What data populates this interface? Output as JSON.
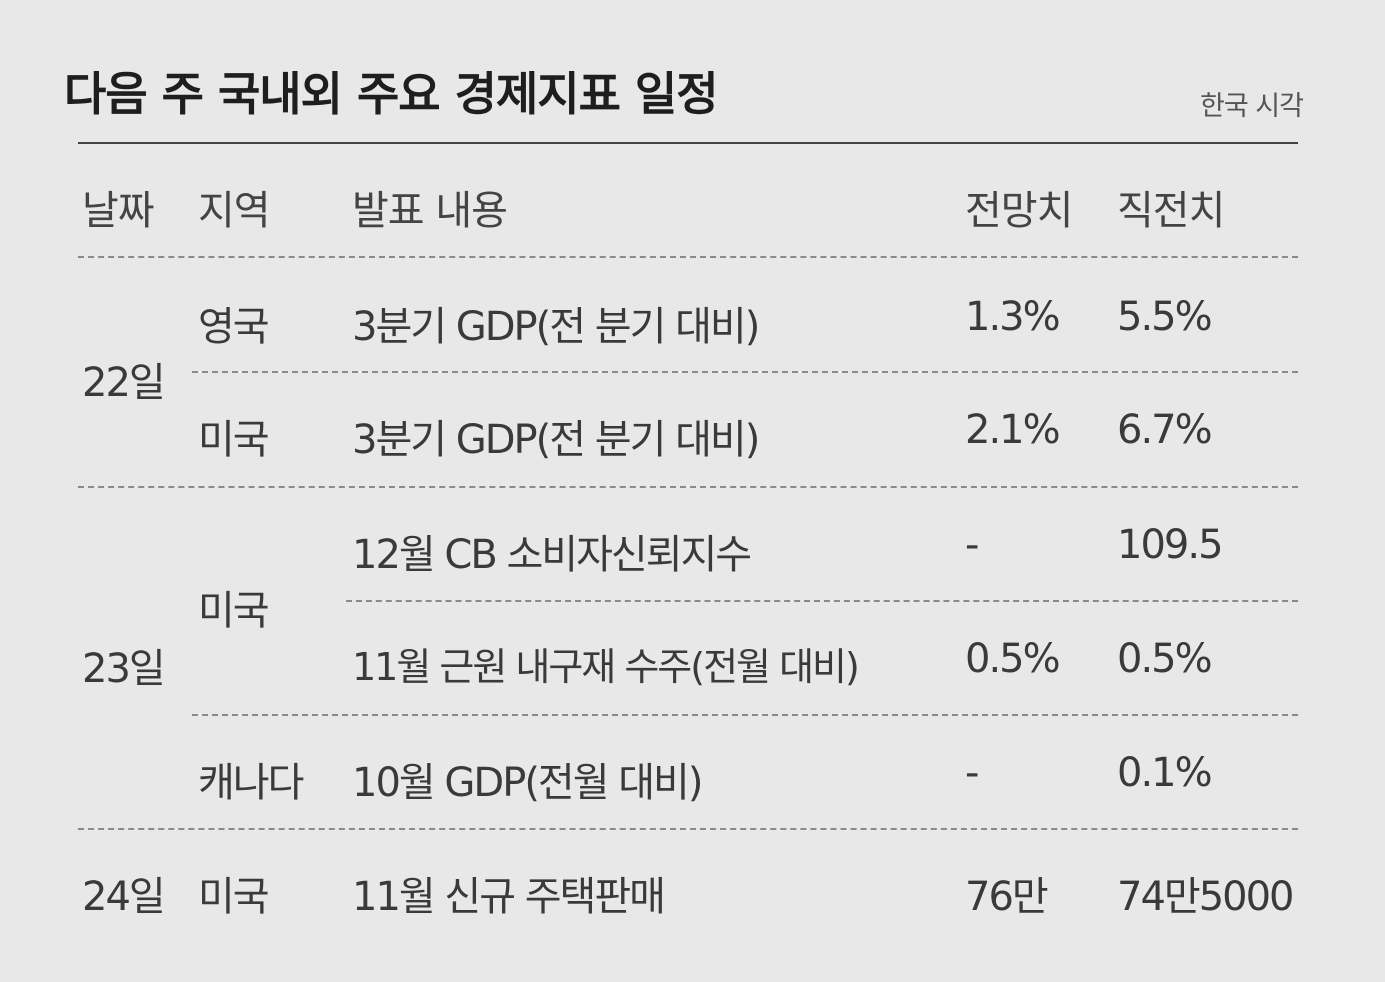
{
  "title": "다음 주 국내외 주요 경제지표 일정",
  "note": "한국 시각",
  "headers": {
    "date": "날짜",
    "region": "지역",
    "content": "발표 내용",
    "forecast": "전망치",
    "previous": "직전치"
  },
  "groups": [
    {
      "date": "22일"
    },
    {
      "date": "23일",
      "region": "미국"
    },
    {
      "date": "24일"
    }
  ],
  "rows": [
    {
      "region": "영국",
      "content": "3분기 GDP(전 분기 대비)",
      "forecast": "1.3%",
      "previous": "5.5%"
    },
    {
      "region": "미국",
      "content": "3분기 GDP(전 분기 대비)",
      "forecast": "2.1%",
      "previous": "6.7%"
    },
    {
      "content": "12월 CB 소비자신뢰지수",
      "forecast": "-",
      "previous": "109.5"
    },
    {
      "content": "11월 근원 내구재 수주(전월 대비)",
      "forecast": "0.5%",
      "previous": "0.5%"
    },
    {
      "region": "캐나다",
      "content": "10월 GDP(전월 대비)",
      "forecast": "-",
      "previous": "0.1%"
    },
    {
      "region": "미국",
      "content": "11월 신규 주택판매",
      "forecast": "76만",
      "previous": "74만5000"
    }
  ]
}
